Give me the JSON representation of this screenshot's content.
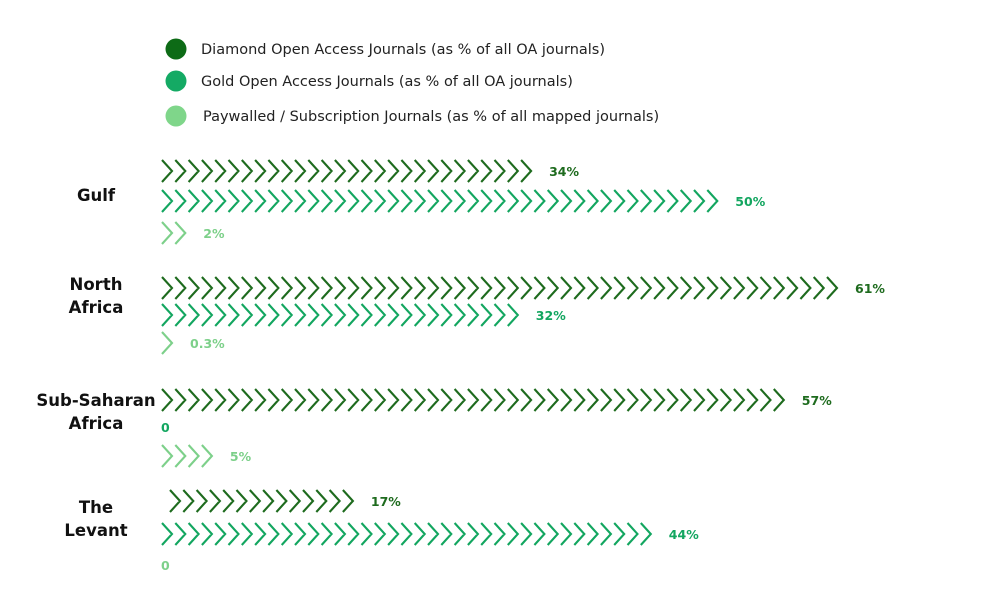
{
  "chart_data": {
    "type": "bar",
    "orientation": "horizontal",
    "mark_style": "chevron-pictograph",
    "categories": [
      [
        "Gulf"
      ],
      [
        "North",
        "Africa"
      ],
      [
        "Sub-Saharan",
        "Africa"
      ],
      [
        "The",
        "Levant"
      ]
    ],
    "series": [
      {
        "name": "Diamond Open Access Journals (as % of all OA journals)",
        "color": "#1e6b1e",
        "values": [
          34,
          61,
          57,
          17
        ],
        "labels": [
          "34%",
          "61%",
          "57%",
          "17%"
        ]
      },
      {
        "name": "Gold Open Access Journals (as % of all OA journals)",
        "color": "#13a660",
        "values": [
          50,
          32,
          0,
          44
        ],
        "labels": [
          "50%",
          "32%",
          "0",
          "44%"
        ]
      },
      {
        "name": "Paywalled / Subscription Journals (as % of all mapped journals)",
        "color": "#7dd08a",
        "values": [
          2,
          0.3,
          5,
          0
        ],
        "labels": [
          "2%",
          "0.3%",
          "5%",
          "0"
        ]
      }
    ],
    "legend": {
      "position": "top-left",
      "marker": "circle"
    },
    "grid": false,
    "xlim": [
      0,
      61
    ]
  },
  "colors": {
    "legend_dark": "#0d6b16",
    "legend_mid": "#14aa64",
    "legend_light": "#7fd68a"
  }
}
